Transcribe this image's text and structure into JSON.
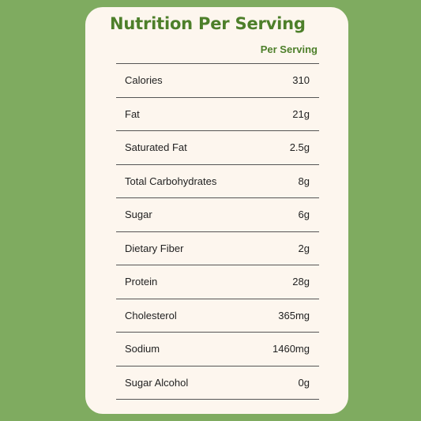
{
  "title": "Nutrition Per Serving",
  "column_header": "Per Serving",
  "rows": [
    {
      "label": "Calories",
      "value": "310"
    },
    {
      "label": "Fat",
      "value": "21g"
    },
    {
      "label": "Saturated Fat",
      "value": "2.5g"
    },
    {
      "label": "Total Carbohydrates",
      "value": "8g"
    },
    {
      "label": "Sugar",
      "value": "6g"
    },
    {
      "label": "Dietary Fiber",
      "value": "2g"
    },
    {
      "label": "Protein",
      "value": "28g"
    },
    {
      "label": "Cholesterol",
      "value": "365mg"
    },
    {
      "label": "Sodium",
      "value": "1460mg"
    },
    {
      "label": "Sugar Alcohol",
      "value": "0g"
    }
  ],
  "colors": {
    "background": "#7fab60",
    "card": "#fdf6ee",
    "accent": "#4d7f2a"
  }
}
